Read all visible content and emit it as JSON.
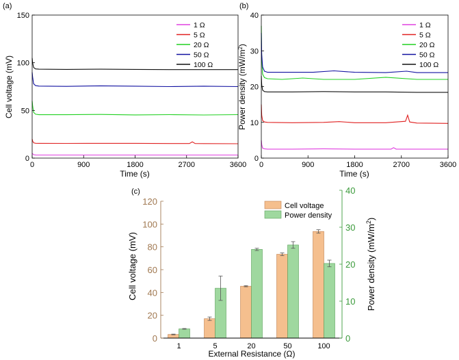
{
  "chart_data": [
    {
      "type": "line",
      "panel_label": "(a)",
      "xlabel": "Time (s)",
      "ylabel": "Cell voltage (mV)",
      "xlim": [
        0,
        3600
      ],
      "ylim": [
        0,
        150
      ],
      "xticks": [
        0,
        900,
        1800,
        2700,
        3600
      ],
      "yticks": [
        0,
        50,
        100,
        150
      ],
      "legend_position": "top-right",
      "series": [
        {
          "name": "1 Ω",
          "color": "#e040e0",
          "x": [
            0,
            8,
            25,
            60,
            120,
            600,
            1200,
            1800,
            2400,
            3000,
            3600
          ],
          "y": [
            5,
            4.5,
            3.6,
            3.3,
            3.2,
            3.2,
            3.2,
            3.2,
            3.2,
            3.2,
            3.2
          ]
        },
        {
          "name": "5 Ω",
          "color": "#e02020",
          "x": [
            0,
            8,
            25,
            60,
            120,
            600,
            1200,
            1800,
            2400,
            2750,
            2800,
            2850,
            3000,
            3600
          ],
          "y": [
            20,
            18,
            16,
            15.6,
            15.5,
            15.4,
            15.5,
            15.5,
            15.3,
            15.3,
            17,
            15.3,
            15.2,
            15.1
          ]
        },
        {
          "name": "20 Ω",
          "color": "#20d020",
          "x": [
            0,
            8,
            25,
            60,
            120,
            600,
            1200,
            1800,
            2400,
            3000,
            3600
          ],
          "y": [
            60,
            55,
            48,
            46,
            45.5,
            45.5,
            45.8,
            45.3,
            45.6,
            45.2,
            45.6
          ]
        },
        {
          "name": "50 Ω",
          "color": "#1010a0",
          "x": [
            0,
            8,
            25,
            60,
            120,
            600,
            1200,
            1800,
            2400,
            3000,
            3600
          ],
          "y": [
            90,
            85,
            78,
            76,
            75.5,
            75.2,
            75.8,
            75.4,
            75.0,
            75.4,
            75.0
          ]
        },
        {
          "name": "100 Ω",
          "color": "#111111",
          "x": [
            0,
            8,
            25,
            60,
            120,
            600,
            1200,
            1800,
            2400,
            3000,
            3600
          ],
          "y": [
            105,
            100,
            95,
            93.5,
            93.2,
            93.0,
            93.2,
            93.0,
            92.8,
            92.8,
            92.8
          ]
        }
      ]
    },
    {
      "type": "line",
      "panel_label": "(b)",
      "xlabel": "Time (s)",
      "ylabel_main": "Power density (mW/m",
      "ylabel_sup": "2",
      "ylabel_close": ")",
      "xlim": [
        0,
        3600
      ],
      "ylim": [
        0,
        40
      ],
      "xticks": [
        0,
        900,
        1800,
        2700,
        3600
      ],
      "yticks": [
        0,
        10,
        20,
        30,
        40
      ],
      "legend_position": "top-right",
      "series": [
        {
          "name": "1 Ω",
          "color": "#e040e0",
          "x": [
            0,
            8,
            25,
            60,
            120,
            600,
            1200,
            1800,
            2400,
            2500,
            2550,
            2600,
            3000,
            3600
          ],
          "y": [
            5,
            3.8,
            2.8,
            2.6,
            2.5,
            2.5,
            2.6,
            2.5,
            2.5,
            2.5,
            2.9,
            2.5,
            2.5,
            2.5
          ]
        },
        {
          "name": "5 Ω",
          "color": "#e02020",
          "x": [
            0,
            8,
            25,
            60,
            120,
            600,
            1200,
            1500,
            1800,
            2400,
            2780,
            2820,
            2860,
            3000,
            3600
          ],
          "y": [
            15,
            12,
            10.5,
            10.1,
            10.0,
            9.9,
            10.0,
            10.2,
            9.9,
            9.9,
            10.3,
            12,
            10.1,
            9.8,
            9.7
          ]
        },
        {
          "name": "20 Ω",
          "color": "#20d020",
          "x": [
            0,
            8,
            25,
            60,
            120,
            400,
            800,
            1200,
            1800,
            2400,
            3000,
            3600
          ],
          "y": [
            37,
            28,
            23.5,
            22.5,
            22.2,
            22.0,
            22.4,
            22.0,
            22.0,
            22.6,
            22.0,
            22.0
          ]
        },
        {
          "name": "50 Ω",
          "color": "#1010a0",
          "x": [
            0,
            8,
            25,
            60,
            120,
            600,
            1000,
            1400,
            1800,
            2400,
            2800,
            3000,
            3600
          ],
          "y": [
            35,
            29,
            25.5,
            24.3,
            24.0,
            24.0,
            24.0,
            24.4,
            24.0,
            23.9,
            24.3,
            23.9,
            23.9
          ]
        },
        {
          "name": "100 Ω",
          "color": "#111111",
          "x": [
            0,
            8,
            25,
            60,
            120,
            600,
            1200,
            1800,
            2400,
            3000,
            3600
          ],
          "y": [
            23,
            20.5,
            19,
            18.6,
            18.5,
            18.5,
            18.6,
            18.5,
            18.5,
            18.4,
            18.4
          ]
        }
      ]
    },
    {
      "type": "bar",
      "panel_label": "(c)",
      "categories": [
        "1",
        "5",
        "20",
        "50",
        "100"
      ],
      "xlabel": "External Resistance (Ω)",
      "ylabel_left": "Cell voltage (mV)",
      "ylabel_right_main": "Power density (mW/m",
      "ylabel_right_sup": "2",
      "ylabel_right_close": ")",
      "ylim_left": [
        0,
        120
      ],
      "ylim_right": [
        0,
        40
      ],
      "yticks_left": [
        0,
        20,
        40,
        60,
        80,
        100,
        120
      ],
      "yticks_right": [
        0,
        10,
        20,
        30,
        40
      ],
      "legend_position": "top-left",
      "series": [
        {
          "name": "Cell voltage",
          "axis": "left",
          "color": "#f5bf8e",
          "edge": "#c08050",
          "values": [
            3.2,
            17,
            45.5,
            73.5,
            93.5
          ],
          "errors": [
            0.3,
            1.5,
            0.5,
            1.2,
            1.5
          ]
        },
        {
          "name": "Power density",
          "axis": "right",
          "color": "#9fd89f",
          "edge": "#5aa05a",
          "values": [
            2.5,
            13.5,
            24,
            25.2,
            20.2
          ],
          "errors": [
            0.1,
            3.3,
            0.3,
            0.9,
            0.9
          ]
        }
      ],
      "left_axis_color": "#a07850",
      "right_axis_color": "#3a9a3a"
    }
  ]
}
